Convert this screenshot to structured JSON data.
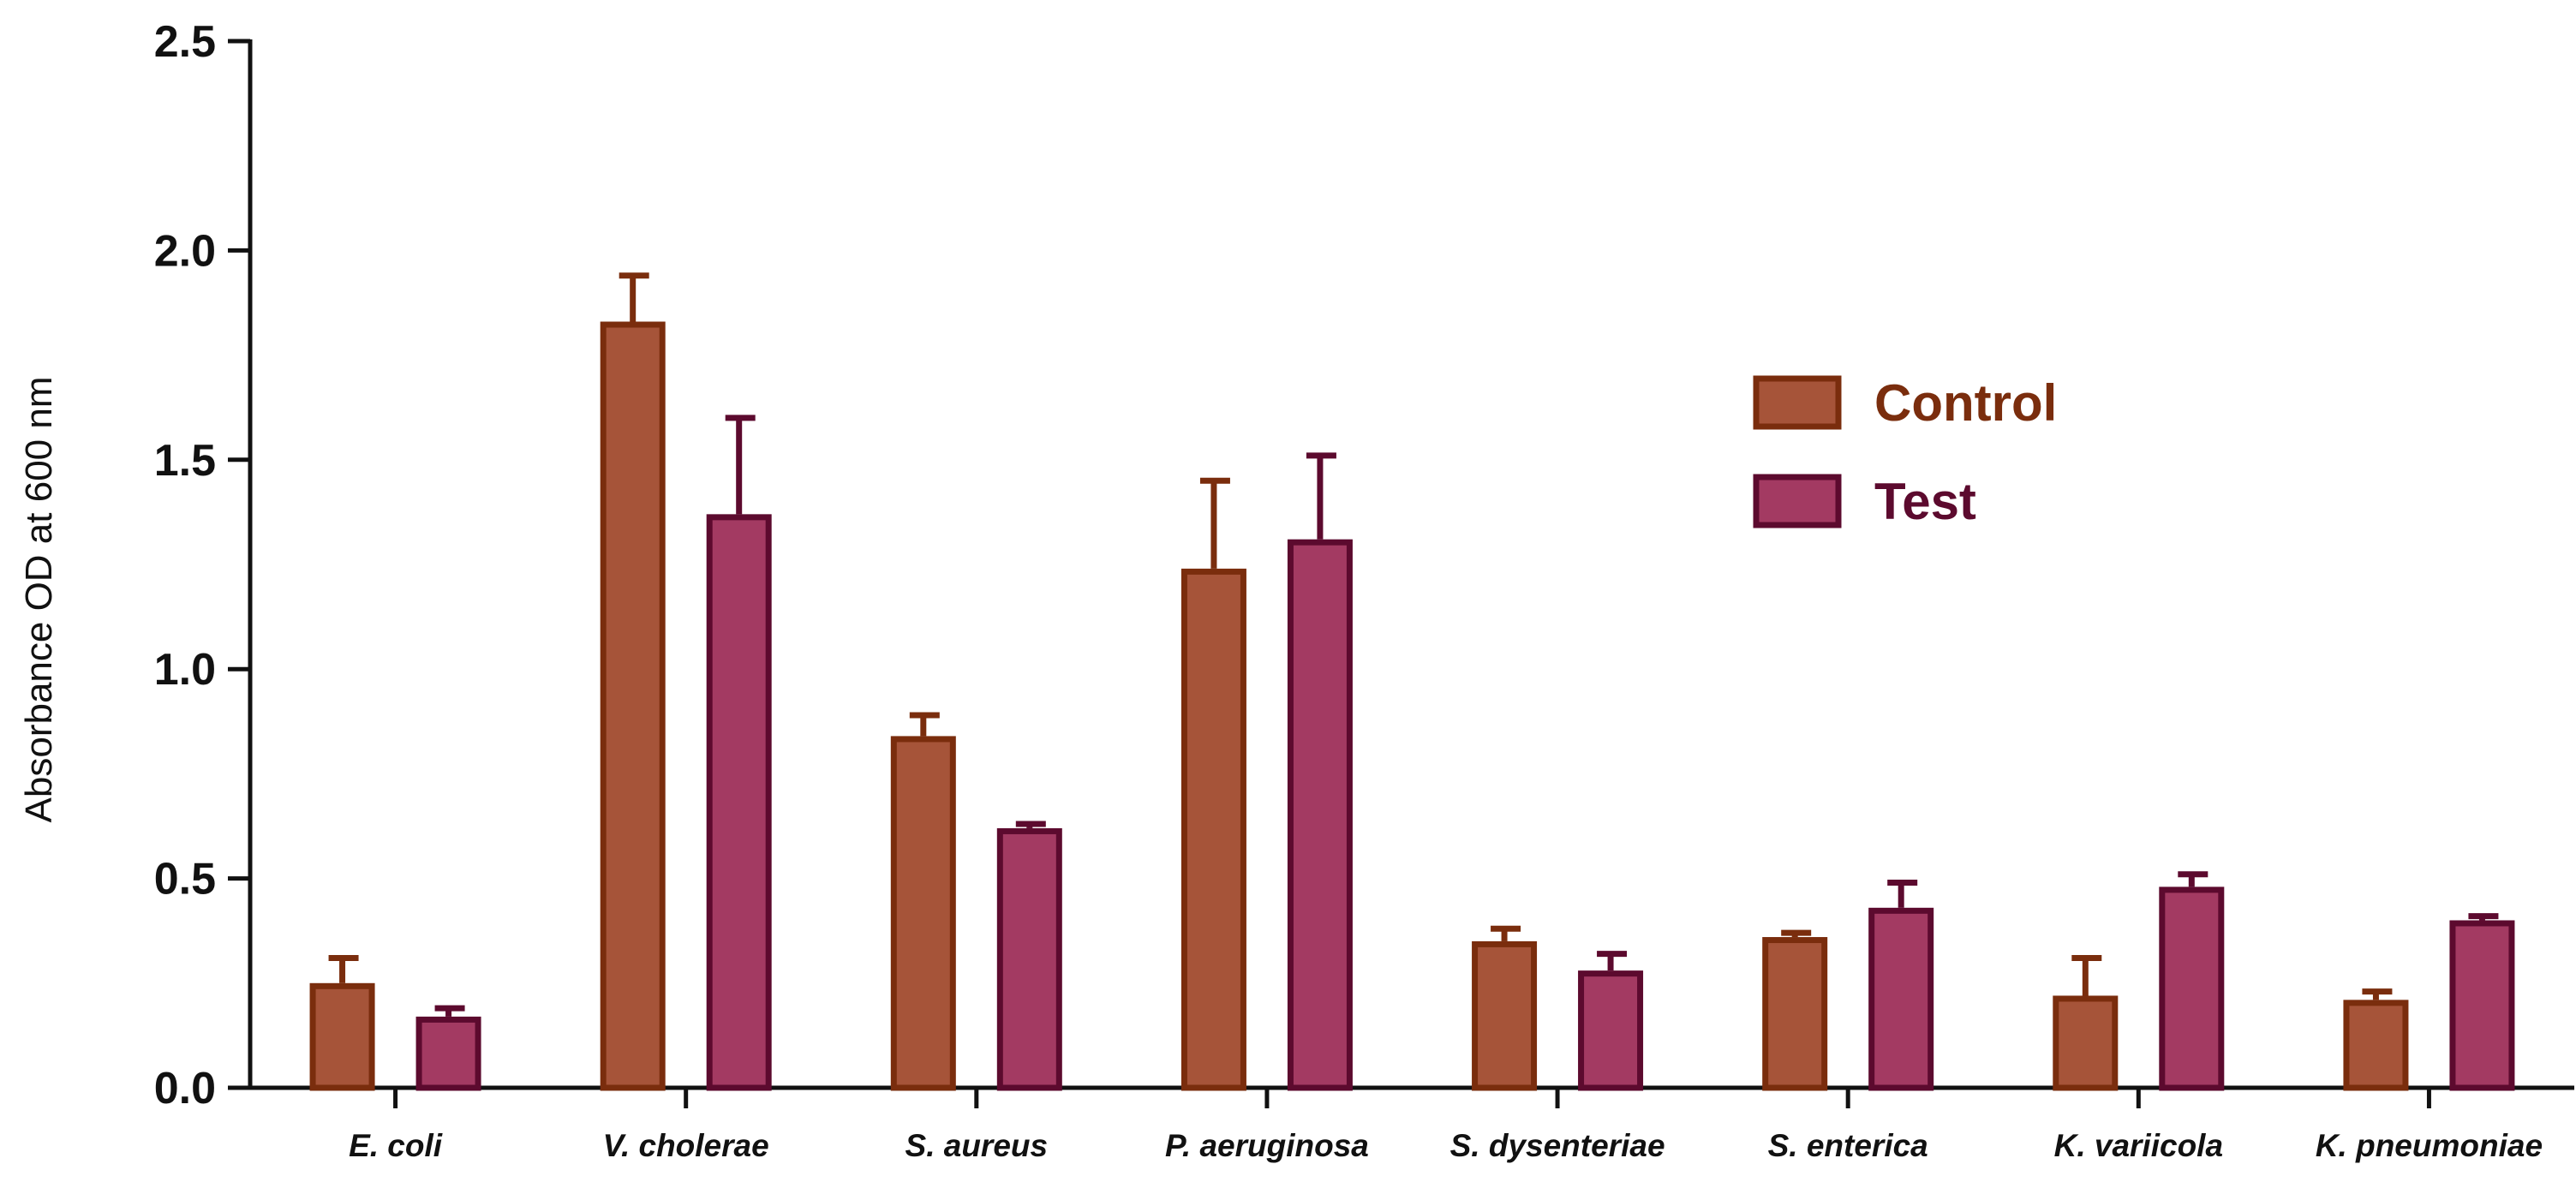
{
  "chart_data": {
    "type": "bar",
    "title": "",
    "xlabel": "",
    "ylabel": "Absorbance OD at 600 nm",
    "ylim": [
      0,
      2.5
    ],
    "yticks": [
      "0.0",
      "0.5",
      "1.0",
      "1.5",
      "2.0",
      "2.5"
    ],
    "grid": false,
    "legend_position": "upper-right",
    "categories": [
      "E. coli",
      "V. cholerae",
      "S. aureus",
      "P. aeruginosa",
      "S. dysenteriae",
      "S. enterica",
      "K. variicola",
      "K. pneumoniae"
    ],
    "series": [
      {
        "name": "Control",
        "fill": "#a65439",
        "stroke": "#7a2d0d",
        "label_color": "#7a2d0d",
        "values": [
          0.25,
          1.83,
          0.84,
          1.24,
          0.35,
          0.36,
          0.22,
          0.21
        ],
        "error_upper": [
          0.31,
          1.94,
          0.89,
          1.45,
          0.38,
          0.37,
          0.31,
          0.23
        ]
      },
      {
        "name": "Test",
        "fill": "#a33a62",
        "stroke": "#5c0a2e",
        "label_color": "#5c0a2e",
        "values": [
          0.17,
          1.37,
          0.62,
          1.31,
          0.28,
          0.43,
          0.48,
          0.4
        ],
        "error_upper": [
          0.19,
          1.6,
          0.63,
          1.51,
          0.32,
          0.49,
          0.51,
          0.41
        ]
      }
    ]
  }
}
